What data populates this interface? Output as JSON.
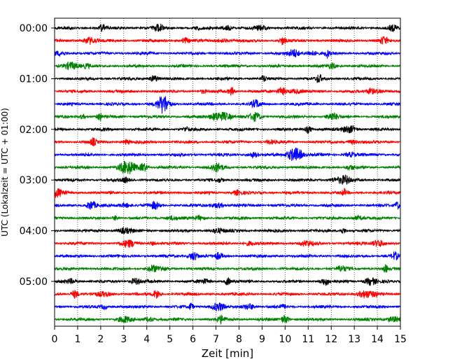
{
  "chart_data": {
    "type": "line",
    "title": "",
    "xlabel": "Zeit  [min]",
    "ylabel": "UTC (Lokalzeit = UTC + 01:00)",
    "xlim": [
      0,
      15
    ],
    "x_ticks": [
      "0",
      "1",
      "2",
      "3",
      "4",
      "5",
      "6",
      "7",
      "8",
      "9",
      "10",
      "11",
      "12",
      "13",
      "14",
      "15"
    ],
    "y_ticks": [
      "00:00",
      "01:00",
      "02:00",
      "03:00",
      "04:00",
      "05:00"
    ],
    "grid": "vertical dotted",
    "trace_minutes": 15,
    "traces_per_hour": 4,
    "trace_count": 24,
    "colors": [
      "#000000",
      "#ff0000",
      "#0000ff",
      "#008000"
    ]
  }
}
